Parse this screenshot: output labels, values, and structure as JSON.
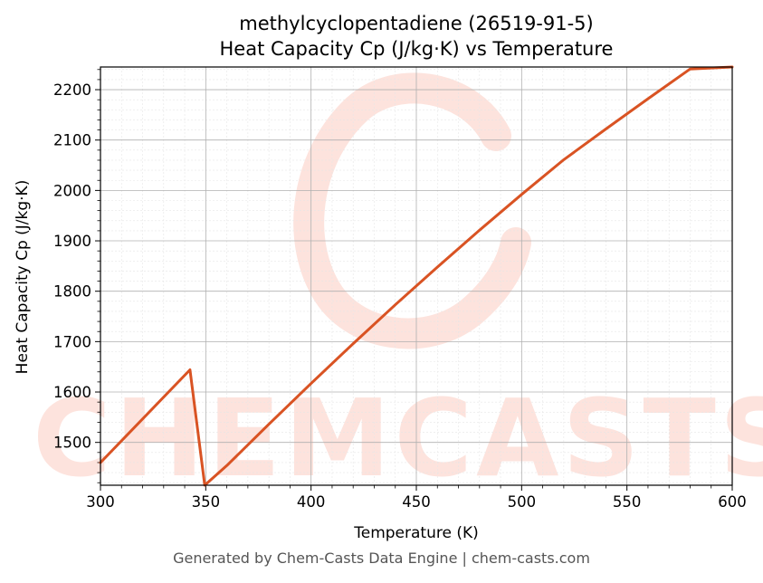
{
  "title_line1": "methylcyclopentadiene (26519-91-5)",
  "title_line2": "Heat Capacity Cp (J/kg·K) vs Temperature",
  "footer": "Generated by Chem-Casts Data Engine | chem-casts.com",
  "watermark": "CHEMCASTS",
  "colors": {
    "line": "#d95323",
    "watermark": "#fde3dd",
    "grid_major": "#b0b0b0",
    "grid_minor": "#e6e6e6"
  },
  "chart_data": {
    "type": "line",
    "title": "methylcyclopentadiene (26519-91-5)\nHeat Capacity Cp (J/kg·K) vs Temperature",
    "xlabel": "Temperature (K)",
    "ylabel": "Heat Capacity Cp (J/kg·K)",
    "xlim": [
      300,
      600
    ],
    "ylim": [
      1415,
      2245
    ],
    "xticks": [
      300,
      350,
      400,
      450,
      500,
      550,
      600
    ],
    "yticks": [
      1500,
      1600,
      1700,
      1800,
      1900,
      2000,
      2100,
      2200
    ],
    "grid": true,
    "legend": "none",
    "series": [
      {
        "x": [
          300,
          342.5,
          349.5,
          360,
          380,
          400,
          420,
          440,
          460,
          480,
          500,
          520,
          540,
          560,
          580,
          600
        ],
        "y": [
          1460,
          1644,
          1415,
          1454,
          1536,
          1617,
          1696,
          1773,
          1848,
          1921,
          1992,
          2061,
          2122,
          2182,
          2241,
          2245
        ]
      }
    ]
  }
}
